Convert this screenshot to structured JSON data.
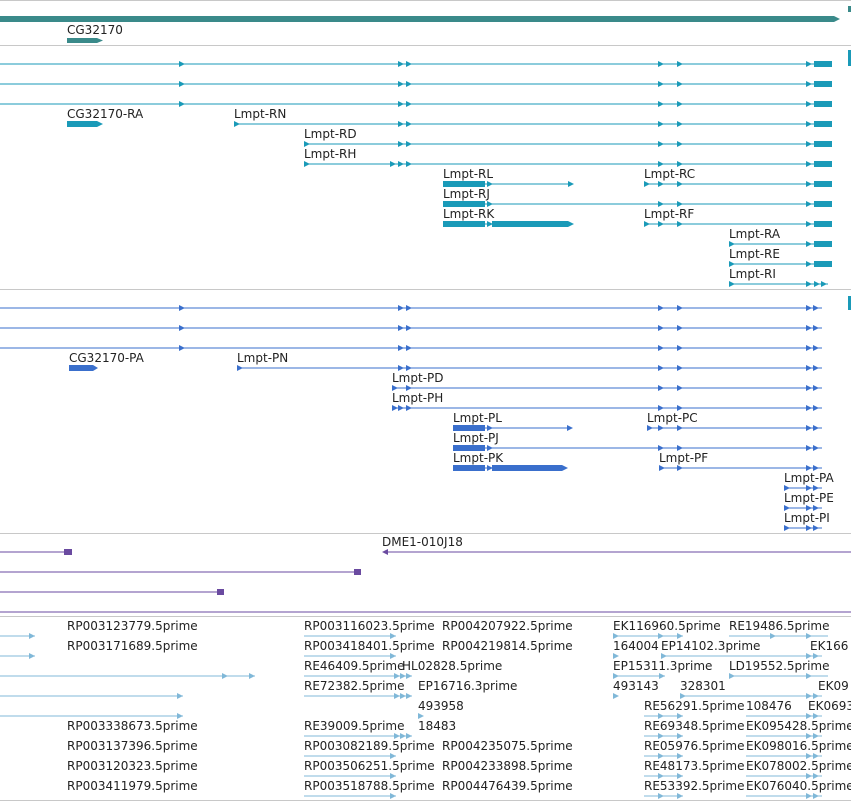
{
  "colors": {
    "gene": "#3a8a8a",
    "transcript": "#1a9ab8",
    "cds": "#3a6fcc",
    "clone": "#6a4aa0",
    "est": "#80b8d8",
    "separator": "#c8c8c8"
  },
  "gene_track": {
    "labels": [
      "CG32170"
    ]
  },
  "transcript_track": {
    "labels": [
      "CG32170-RA",
      "Lmpt-RN",
      "Lmpt-RD",
      "Lmpt-RH",
      "Lmpt-RL",
      "Lmpt-RC",
      "Lmpt-RJ",
      "Lmpt-RK",
      "Lmpt-RF",
      "Lmpt-RA",
      "Lmpt-RE",
      "Lmpt-RI"
    ]
  },
  "cds_track": {
    "labels": [
      "CG32170-PA",
      "Lmpt-PN",
      "Lmpt-PD",
      "Lmpt-PH",
      "Lmpt-PL",
      "Lmpt-PC",
      "Lmpt-PJ",
      "Lmpt-PK",
      "Lmpt-PF",
      "Lmpt-PA",
      "Lmpt-PE",
      "Lmpt-PI"
    ]
  },
  "clone_track": {
    "labels": [
      "DME1-010J18"
    ]
  },
  "est_track": {
    "labels": [
      "RP003123779.5prime",
      "RP003116023.5prime",
      "RP004207922.5prime",
      "EK116960.5prime",
      "RE19486.5prime",
      "RP003171689.5prime",
      "RP003418401.5prime",
      "RP004219814.5prime",
      "164004",
      "EP14102.3prime",
      "EK166",
      "RE46409.5prime",
      "HL02828.5prime",
      "EP15311.3prime",
      "LD19552.5prime",
      "RE72382.5prime",
      "EP16716.3prime",
      "493143",
      "328301",
      "EK09",
      "493958",
      "RE56291.5prime",
      "108476",
      "EK0693",
      "RP003338673.5prime",
      "RE39009.5prime",
      "18483",
      "RE69348.5prime",
      "EK095428.5prime",
      "RP003137396.5prime",
      "RP003082189.5prime",
      "RP004235075.5prime",
      "RE05976.5prime",
      "EK098016.5prime",
      "RP003120323.5prime",
      "RP003506251.5prime",
      "RP004233898.5prime",
      "RE48173.5prime",
      "EK078002.5prime",
      "RP003411979.5prime",
      "RP003518788.5prime",
      "RP004476439.5prime",
      "RE53392.5prime",
      "EK076040.5prime"
    ]
  }
}
